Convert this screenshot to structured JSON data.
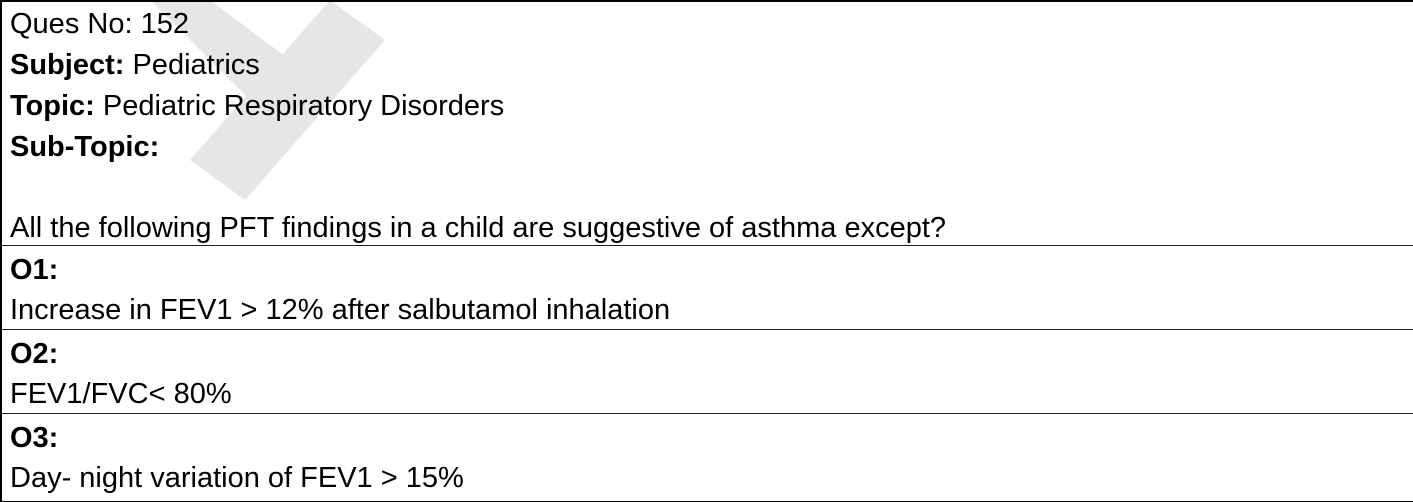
{
  "question": {
    "ques_no_label": "Ques No:",
    "ques_no_value": "152",
    "subject_label": "Subject:",
    "subject_value": "Pediatrics",
    "topic_label": "Topic:",
    "topic_value": "Pediatric Respiratory Disorders",
    "subtopic_label": "Sub-Topic:",
    "subtopic_value": "",
    "stem": "All the following PFT findings in a child are suggestive of asthma except?"
  },
  "options": [
    {
      "label": "O1:",
      "text": "Increase in FEV1 > 12% after salbutamol inhalation"
    },
    {
      "label": "O2:",
      "text": "FEV1/FVC< 80%"
    },
    {
      "label": "O3:",
      "text": "Day- night variation of FEV1 > 15%"
    }
  ],
  "colors": {
    "border": "#000000",
    "text": "#000000",
    "watermark": "#e6e6e6"
  }
}
